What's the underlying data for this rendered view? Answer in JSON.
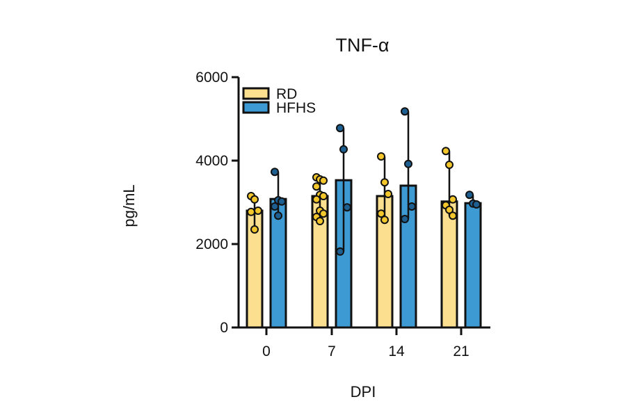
{
  "chart_data": {
    "type": "bar",
    "title": "TNF-α",
    "xlabel": "DPI",
    "ylabel": "pg/mL",
    "ylim": [
      0,
      6000
    ],
    "yticks": [
      0,
      2000,
      4000,
      6000
    ],
    "categories": [
      "0",
      "7",
      "14",
      "21"
    ],
    "legend_position": "top-left-inside",
    "grid": false,
    "series": [
      {
        "name": "RD",
        "color": "#FDE08F",
        "point_color": "#F3C62B",
        "values": [
          2800,
          3150,
          3150,
          3020
        ],
        "error_max": [
          3150,
          3600,
          4100,
          4230
        ],
        "error_min": [
          2350,
          2550,
          2580,
          2680
        ],
        "points": [
          [
            3150,
            3070,
            2800,
            2770,
            2350
          ],
          [
            3600,
            3550,
            3520,
            3380,
            3180,
            3150,
            3070,
            2800,
            2730,
            2650,
            2550
          ],
          [
            4100,
            3480,
            3200,
            2730,
            2580
          ],
          [
            4230,
            3900,
            3070,
            2930,
            2820,
            2680
          ]
        ]
      },
      {
        "name": "HFHS",
        "color": "#3E9AD3",
        "point_color": "#1E5F91",
        "values": [
          3080,
          3530,
          3400,
          2980
        ],
        "error_max": [
          3730,
          4780,
          5180,
          3180
        ],
        "error_min": [
          2680,
          1820,
          2600,
          2950
        ],
        "points": [
          [
            3730,
            3050,
            3020,
            2900,
            2680
          ],
          [
            4780,
            4270,
            2880,
            1820
          ],
          [
            5180,
            3920,
            2900,
            2600
          ],
          [
            3180,
            2970,
            2950
          ]
        ]
      }
    ]
  }
}
